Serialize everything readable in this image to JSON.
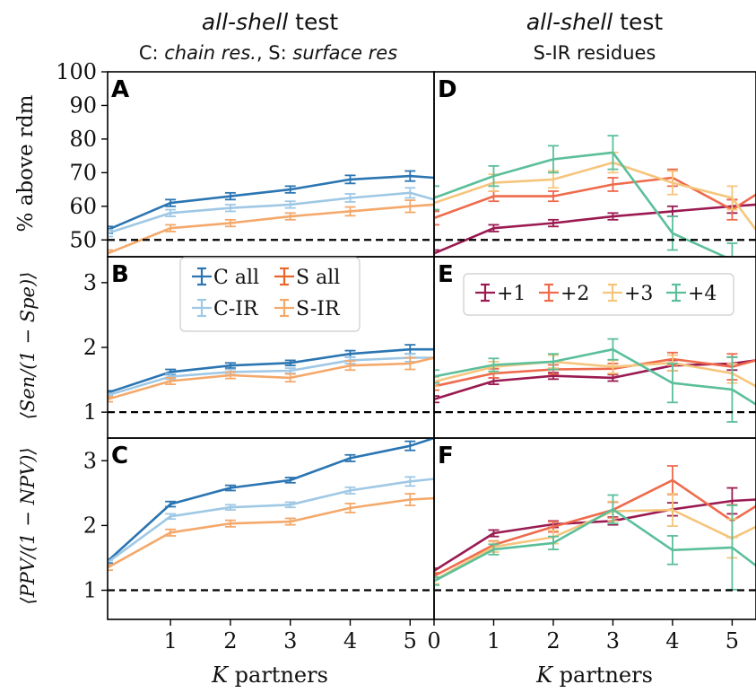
{
  "figure": {
    "left_title": {
      "italic": "all-shell",
      "rest": " test"
    },
    "left_subtitle": {
      "p1": "C: ",
      "p2": "chain res.",
      "p3": ", S: ",
      "p4": "surface res"
    },
    "right_title": {
      "italic": "all-shell",
      "rest": " test"
    },
    "right_subtitle": "S-IR residues",
    "xlabel_left": {
      "var": "K",
      "rest": " partners"
    },
    "xlabel_right": {
      "var": "K",
      "rest": " partners"
    },
    "ylabel_top": "% above rdm",
    "ylabel_mid": "⟨Sen/(1 − Spe)⟩",
    "ylabel_bot": "⟨PPV/(1 − NPV)⟩",
    "panel_letters": [
      "A",
      "B",
      "C",
      "D",
      "E",
      "F"
    ],
    "colors": {
      "C_all": "#2a75b2",
      "C_IR": "#9fc8e5",
      "S_all": "#e8662c",
      "S_IR": "#f4a86a",
      "p1": "#9a1a51",
      "p2": "#ee6b4c",
      "p3": "#f6c57c",
      "p4": "#5bbf9a"
    }
  },
  "legend_left": [
    "C all",
    "S all",
    "C-IR",
    "S-IR"
  ],
  "legend_right": [
    "+1",
    "+2",
    "+3",
    "+4"
  ],
  "chart_data": [
    {
      "panel": "A",
      "type": "line",
      "ylabel": "% above rdm",
      "xlim": [
        -0.05,
        5.4
      ],
      "ylim": [
        45,
        100
      ],
      "yticks": [
        50,
        60,
        70,
        80,
        90,
        100
      ],
      "baseline": 50,
      "series": [
        {
          "name": "C all",
          "x": [
            -0.05,
            1,
            2,
            3,
            4,
            5,
            5.4
          ],
          "y": [
            53,
            61,
            63,
            65,
            68,
            69,
            68.5
          ],
          "err": [
            1,
            1,
            1,
            1,
            1.2,
            1.5,
            0
          ]
        },
        {
          "name": "C-IR",
          "x": [
            -0.05,
            1,
            2,
            3,
            4,
            5,
            5.4
          ],
          "y": [
            52,
            58,
            59.5,
            60.5,
            62.5,
            64,
            62
          ],
          "err": [
            1,
            1,
            1,
            1,
            1.2,
            1.5,
            0
          ]
        },
        {
          "name": "S-IR",
          "x": [
            -0.05,
            1,
            2,
            3,
            4,
            5,
            5.4
          ],
          "y": [
            46,
            53.5,
            55,
            57,
            58.5,
            60,
            60.5
          ],
          "err": [
            1,
            1,
            1,
            1,
            1.3,
            1.8,
            0
          ]
        }
      ]
    },
    {
      "panel": "B",
      "type": "line",
      "ylabel": "⟨Sen/(1 − Spe)⟩",
      "xlim": [
        -0.05,
        5.4
      ],
      "ylim": [
        0.6,
        3.4
      ],
      "yticks": [
        1,
        2,
        3
      ],
      "baseline": 1,
      "series": [
        {
          "name": "C all",
          "x": [
            -0.05,
            1,
            2,
            3,
            4,
            5,
            5.4
          ],
          "y": [
            1.3,
            1.62,
            1.72,
            1.76,
            1.9,
            1.97,
            1.97
          ],
          "err": [
            0.03,
            0.04,
            0.04,
            0.04,
            0.05,
            0.07,
            0
          ]
        },
        {
          "name": "C-IR",
          "x": [
            -0.05,
            1,
            2,
            3,
            4,
            5,
            5.4
          ],
          "y": [
            1.26,
            1.55,
            1.62,
            1.64,
            1.8,
            1.84,
            1.84
          ],
          "err": [
            0.03,
            0.04,
            0.04,
            0.04,
            0.05,
            0.06,
            0
          ]
        },
        {
          "name": "S-IR",
          "x": [
            -0.05,
            1,
            2,
            3,
            4,
            5,
            5.4
          ],
          "y": [
            1.2,
            1.48,
            1.57,
            1.53,
            1.72,
            1.75,
            1.84
          ],
          "err": [
            0.04,
            0.05,
            0.05,
            0.06,
            0.07,
            0.09,
            0
          ]
        }
      ]
    },
    {
      "panel": "C",
      "type": "line",
      "ylabel": "⟨PPV/(1 − NPV)⟩",
      "xlim": [
        -0.05,
        5.4
      ],
      "ylim": [
        0.55,
        3.35
      ],
      "yticks": [
        1,
        2,
        3
      ],
      "xticks": [
        1,
        2,
        3,
        4,
        5
      ],
      "xlabel": "K partners",
      "baseline": 1,
      "series": [
        {
          "name": "C all",
          "x": [
            -0.05,
            1,
            2,
            3,
            4,
            5,
            5.4
          ],
          "y": [
            1.45,
            2.33,
            2.58,
            2.7,
            3.04,
            3.23,
            3.35
          ],
          "err": [
            0.03,
            0.04,
            0.04,
            0.04,
            0.05,
            0.07,
            0
          ]
        },
        {
          "name": "C-IR",
          "x": [
            -0.05,
            1,
            2,
            3,
            4,
            5,
            5.4
          ],
          "y": [
            1.43,
            2.14,
            2.28,
            2.32,
            2.54,
            2.68,
            2.72
          ],
          "err": [
            0.03,
            0.04,
            0.04,
            0.04,
            0.05,
            0.07,
            0
          ]
        },
        {
          "name": "S-IR",
          "x": [
            -0.05,
            1,
            2,
            3,
            4,
            5,
            5.4
          ],
          "y": [
            1.35,
            1.89,
            2.03,
            2.06,
            2.27,
            2.4,
            2.42
          ],
          "err": [
            0.04,
            0.05,
            0.05,
            0.05,
            0.07,
            0.09,
            0
          ]
        }
      ]
    },
    {
      "panel": "D",
      "type": "line",
      "xlim": [
        0,
        5.4
      ],
      "ylim": [
        45,
        100
      ],
      "baseline": 50,
      "series": [
        {
          "name": "+1",
          "x": [
            0,
            1,
            2,
            3,
            4,
            5,
            5.4
          ],
          "y": [
            46,
            53.5,
            55,
            57,
            58.5,
            60,
            60.5
          ],
          "err": [
            1,
            1,
            1,
            1,
            1.5,
            2,
            0
          ]
        },
        {
          "name": "+2",
          "x": [
            0,
            1,
            2,
            3,
            4,
            5,
            5.4
          ],
          "y": [
            56.5,
            63,
            63,
            66.5,
            68.5,
            59,
            63.5
          ],
          "err": [
            2,
            1.5,
            1.5,
            2,
            2.5,
            3,
            0
          ]
        },
        {
          "name": "+3",
          "x": [
            0,
            1,
            2,
            3,
            4,
            5,
            5.4
          ],
          "y": [
            61,
            67,
            68,
            73,
            67,
            62.5,
            53
          ],
          "err": [
            2,
            2.5,
            2.5,
            3,
            3.5,
            3.5,
            0
          ]
        },
        {
          "name": "+4",
          "x": [
            0,
            1,
            2,
            3,
            4,
            5,
            5.4
          ],
          "y": [
            62.5,
            69,
            74,
            76,
            52,
            44,
            42
          ],
          "err": [
            3.5,
            3,
            4,
            5,
            5,
            5,
            0
          ]
        }
      ]
    },
    {
      "panel": "E",
      "type": "line",
      "xlim": [
        0,
        5.4
      ],
      "ylim": [
        0.6,
        3.4
      ],
      "baseline": 1,
      "series": [
        {
          "name": "+1",
          "x": [
            0,
            1,
            2,
            3,
            4,
            5,
            5.4
          ],
          "y": [
            1.2,
            1.48,
            1.56,
            1.53,
            1.72,
            1.75,
            1.8
          ],
          "err": [
            0.05,
            0.05,
            0.05,
            0.05,
            0.08,
            0.1,
            0
          ]
        },
        {
          "name": "+2",
          "x": [
            0,
            1,
            2,
            3,
            4,
            5,
            5.4
          ],
          "y": [
            1.4,
            1.6,
            1.66,
            1.67,
            1.82,
            1.7,
            1.8
          ],
          "err": [
            0.06,
            0.07,
            0.07,
            0.08,
            0.1,
            0.2,
            0
          ]
        },
        {
          "name": "+3",
          "x": [
            0,
            1,
            2,
            3,
            4,
            5,
            5.4
          ],
          "y": [
            1.47,
            1.7,
            1.78,
            1.7,
            1.76,
            1.6,
            1.4
          ],
          "err": [
            0.07,
            0.08,
            0.1,
            0.1,
            0.12,
            0.15,
            0
          ]
        },
        {
          "name": "+4",
          "x": [
            0,
            1,
            2,
            3,
            4,
            5,
            5.4
          ],
          "y": [
            1.55,
            1.73,
            1.78,
            1.97,
            1.45,
            1.35,
            1.12
          ],
          "err": [
            0.1,
            0.1,
            0.12,
            0.16,
            0.3,
            0.5,
            0
          ]
        }
      ]
    },
    {
      "panel": "F",
      "type": "line",
      "xlim": [
        0,
        5.4
      ],
      "ylim": [
        0.55,
        3.35
      ],
      "xticks": [
        0,
        1,
        2,
        3,
        4,
        5
      ],
      "xlabel": "K partners",
      "baseline": 1,
      "series": [
        {
          "name": "+1",
          "x": [
            0,
            1,
            2,
            3,
            4,
            5,
            5.4
          ],
          "y": [
            1.3,
            1.88,
            2.02,
            2.07,
            2.25,
            2.38,
            2.4
          ],
          "err": [
            0.04,
            0.05,
            0.05,
            0.06,
            0.1,
            0.2,
            0
          ]
        },
        {
          "name": "+2",
          "x": [
            0,
            1,
            2,
            3,
            4,
            5,
            5.4
          ],
          "y": [
            1.22,
            1.7,
            1.98,
            2.24,
            2.7,
            2.07,
            2.3
          ],
          "err": [
            0.05,
            0.06,
            0.08,
            0.12,
            0.22,
            0.25,
            0
          ]
        },
        {
          "name": "+3",
          "x": [
            0,
            1,
            2,
            3,
            4,
            5,
            5.4
          ],
          "y": [
            1.15,
            1.67,
            1.82,
            2.22,
            2.24,
            1.8,
            1.98
          ],
          "err": [
            0.05,
            0.08,
            0.1,
            0.15,
            0.25,
            0.3,
            0
          ]
        },
        {
          "name": "+4",
          "x": [
            0,
            1,
            2,
            3,
            4,
            5,
            5.4
          ],
          "y": [
            1.14,
            1.63,
            1.73,
            2.25,
            1.62,
            1.66,
            1.38
          ],
          "err": [
            0.06,
            0.08,
            0.1,
            0.22,
            0.22,
            0.65,
            0
          ]
        }
      ]
    }
  ]
}
